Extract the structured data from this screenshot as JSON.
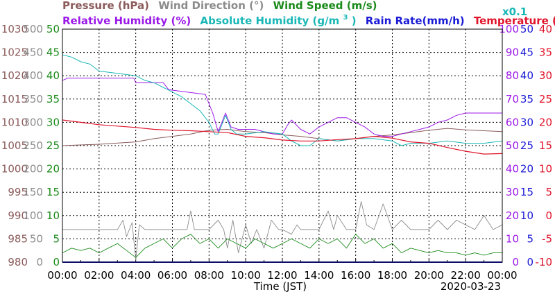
{
  "chart_data": {
    "type": "line",
    "legend": {
      "row1": [
        {
          "key": "pressure",
          "text": "Pressure (hPa)",
          "color": "#8b5a5a"
        },
        {
          "key": "wind_direction",
          "text": "Wind Direction (°)",
          "color": "#8c8c8c"
        },
        {
          "key": "wind_speed",
          "text": "Wind Speed (m/s)",
          "color": "#1a8a1a"
        }
      ],
      "row2": [
        {
          "key": "relative_humidity",
          "text": "Relative Humidity (%)",
          "color": "#9b19e8"
        },
        {
          "key": "absolute_humidity_pre",
          "text": "Absolute Humidity (g/m",
          "color": "#1ab7b7"
        },
        {
          "key": "absolute_humidity_sup",
          "text": "3",
          "color": "#1ab7b7"
        },
        {
          "key": "absolute_humidity_post",
          "text": ")",
          "color": "#1ab7b7"
        },
        {
          "key": "rain_rate",
          "text": "Rain Rate(mm/h)",
          "color": "#1a1ad6"
        },
        {
          "key": "temperature",
          "text": "Temperature (°C)",
          "color": "#e0142a"
        }
      ],
      "abs_scale": "x0.1"
    },
    "axes": {
      "pressure": {
        "color": "#8b5a5a",
        "ticks": [
          "980",
          "985",
          "990",
          "995",
          "1000",
          "1005",
          "1010",
          "1015",
          "1020",
          "1025",
          "1030"
        ],
        "ylim": [
          980,
          1030
        ]
      },
      "wind_direction": {
        "color": "#8c8c8c",
        "ticks": [
          "0",
          "50",
          "100",
          "150",
          "200",
          "250",
          "300",
          "350",
          "400",
          "450",
          "500"
        ],
        "ylim": [
          0,
          500
        ]
      },
      "wind_speed": {
        "color": "#1a8a1a",
        "ticks": [
          "0",
          "5",
          "10",
          "15",
          "20",
          "25",
          "30",
          "35",
          "40",
          "45",
          "50"
        ],
        "ylim": [
          0,
          50
        ]
      },
      "humidity": {
        "color": "#9b19e8",
        "ticks": [
          "0",
          "10",
          "20",
          "30",
          "40",
          "50",
          "60",
          "70",
          "80",
          "90",
          "100"
        ],
        "ylim": [
          0,
          100
        ]
      },
      "rain_rate": {
        "color": "#1a1ad6",
        "ticks": [
          "0",
          "5",
          "10",
          "15",
          "20",
          "25",
          "30",
          "35",
          "40",
          "45",
          "50"
        ],
        "ylim": [
          0,
          50
        ]
      },
      "temperature": {
        "color": "#e0142a",
        "ticks": [
          "-10",
          "-5",
          "0",
          "5",
          "10",
          "15",
          "20",
          "25",
          "30",
          "35",
          "40"
        ],
        "ylim": [
          -10,
          40
        ]
      }
    },
    "x_ticks": [
      "00:00",
      "02:00",
      "04:00",
      "06:00",
      "08:00",
      "10:00",
      "12:00",
      "14:00",
      "16:00",
      "18:00",
      "20:00",
      "22:00",
      "00:00"
    ],
    "xlabel": "Time (JST)",
    "date": "2020-03-23",
    "series": [
      {
        "name": "Pressure (hPa)",
        "axis": "pressure",
        "color": "#8b5a5a",
        "width": 1,
        "x": [
          0,
          2,
          4,
          5,
          6,
          7,
          8,
          9,
          10,
          11,
          12,
          13,
          14,
          15,
          16,
          17,
          18,
          19,
          20,
          21,
          22,
          23,
          24
        ],
        "y": [
          1005,
          1005.3,
          1005.8,
          1006.5,
          1007,
          1007.5,
          1008.3,
          1008.5,
          1008,
          1007.8,
          1007.3,
          1007,
          1006.5,
          1006,
          1006.5,
          1007,
          1007.3,
          1007.8,
          1008.3,
          1008.7,
          1008.4,
          1008.2,
          1008
        ]
      },
      {
        "name": "Relative Humidity (%)",
        "axis": "humidity",
        "color": "#9b19e8",
        "width": 1,
        "x": [
          0,
          0.3,
          3.9,
          4.0,
          5.5,
          5.8,
          7.8,
          8.2,
          8.5,
          8.9,
          9.2,
          9.6,
          10.5,
          11.5,
          12,
          12.3,
          12.5,
          13,
          13.5,
          14,
          14.5,
          15,
          15.5,
          16,
          16.5,
          17,
          17.5,
          18,
          18.5,
          19,
          19.5,
          20,
          20.5,
          21,
          21.5,
          22,
          23,
          24
        ],
        "y": [
          78,
          79,
          79,
          77,
          77,
          74,
          72,
          64,
          56,
          64,
          58,
          57,
          57,
          55,
          55,
          59,
          61,
          57,
          55,
          58,
          60,
          62,
          62,
          60,
          58,
          55,
          54,
          54,
          55,
          56,
          57,
          58,
          60,
          61,
          63,
          64,
          64,
          64
        ]
      },
      {
        "name": "Absolute Humidity (g/m3)",
        "axis": "humidity",
        "color": "#1ab7b7",
        "width": 1,
        "x": [
          0,
          0.5,
          1,
          1.5,
          2,
          3,
          4,
          4.5,
          5,
          5.5,
          6,
          6.5,
          7,
          7.5,
          8,
          8.3,
          8.5,
          8.9,
          9.2,
          9.5,
          10,
          11,
          12,
          12.5,
          13,
          13.5,
          14,
          15,
          16,
          17,
          18,
          18.5,
          19,
          20,
          21,
          22,
          23,
          24
        ],
        "y": [
          89,
          88,
          86,
          85,
          82,
          81,
          80,
          78,
          77,
          75,
          73,
          71,
          68,
          65,
          60,
          55,
          55,
          63,
          57,
          55,
          55,
          56,
          55,
          52,
          50,
          50,
          53,
          52,
          53,
          53,
          52,
          50,
          51,
          51,
          52,
          51,
          51,
          52
        ]
      },
      {
        "name": "Temperature (°C)",
        "axis": "temperature",
        "color": "#e0142a",
        "width": 1.2,
        "x": [
          0,
          1,
          2,
          3,
          4,
          5,
          6,
          7,
          8,
          9,
          10,
          11,
          12,
          13,
          14,
          15,
          16,
          17,
          18,
          19,
          20,
          21,
          22,
          23,
          24
        ],
        "y": [
          20.5,
          20,
          19.5,
          19.2,
          18.9,
          18.5,
          18.3,
          18.2,
          18,
          17.8,
          17,
          16.7,
          16.2,
          16,
          16,
          16.3,
          16.5,
          17,
          16.6,
          15.8,
          15.5,
          14.6,
          13.8,
          13.2,
          13.3
        ]
      },
      {
        "name": "Wind Direction (°)",
        "axis": "wind_direction",
        "color": "#8c8c8c",
        "width": 0.9,
        "x": [
          0,
          1,
          2,
          3,
          3.3,
          3.5,
          3.8,
          4,
          4.2,
          4.5,
          5,
          6,
          6.8,
          7,
          7.2,
          8,
          8.5,
          8.8,
          9,
          9.3,
          9.6,
          10,
          10.3,
          10.6,
          11,
          11.4,
          11.8,
          12,
          12.5,
          12.8,
          13,
          13.5,
          14,
          14.5,
          14.8,
          15,
          15.5,
          16,
          16.3,
          16.6,
          17,
          17.5,
          18,
          18.5,
          19,
          19.5,
          20,
          20.5,
          21,
          21.5,
          22,
          22.5,
          23,
          23.5,
          24
        ],
        "y": [
          70,
          70,
          70,
          70,
          90,
          55,
          85,
          5,
          80,
          70,
          70,
          70,
          70,
          110,
          70,
          70,
          90,
          70,
          30,
          90,
          20,
          80,
          40,
          70,
          30,
          90,
          70,
          70,
          60,
          80,
          70,
          70,
          70,
          110,
          70,
          100,
          70,
          70,
          130,
          80,
          70,
          125,
          70,
          90,
          70,
          70,
          70,
          90,
          70,
          90,
          80,
          70,
          100,
          70,
          80
        ]
      },
      {
        "name": "Wind Speed (m/s)",
        "axis": "wind_speed",
        "color": "#1a8a1a",
        "width": 0.9,
        "x": [
          0,
          0.5,
          1,
          1.5,
          2,
          2.5,
          3,
          3.5,
          4,
          4.5,
          5,
          5.5,
          6,
          6.5,
          7,
          7.5,
          8,
          8.5,
          9,
          9.5,
          10,
          10.5,
          11,
          11.5,
          12,
          12.5,
          13,
          13.5,
          14,
          14.5,
          15,
          15.5,
          16,
          16.5,
          17,
          17.5,
          18,
          18.5,
          19,
          19.5,
          20,
          20.5,
          21,
          21.5,
          22,
          22.5,
          23,
          23.5,
          24
        ],
        "y": [
          2,
          3,
          2.5,
          3,
          2,
          3,
          4,
          2.5,
          1,
          3,
          4,
          5,
          3,
          5,
          6,
          4,
          5,
          3,
          5,
          4,
          3,
          5,
          4,
          3,
          4,
          5,
          4,
          3,
          5,
          4,
          5,
          3,
          6,
          4,
          5,
          3,
          4,
          2,
          3,
          2.5,
          2,
          2.5,
          2,
          2,
          1.5,
          2,
          1.5,
          2,
          2
        ]
      }
    ]
  }
}
